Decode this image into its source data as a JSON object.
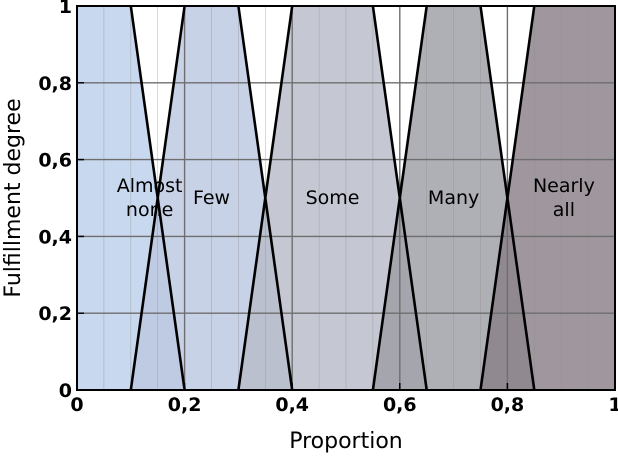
{
  "chart_data": {
    "type": "area",
    "title": "",
    "xlabel": "Proportion",
    "ylabel": "Fulfillment degree",
    "xlim": [
      0,
      1
    ],
    "ylim": [
      0,
      1
    ],
    "grid": true,
    "x_ticks": [
      0,
      0.2,
      0.4,
      0.6,
      0.8,
      1
    ],
    "x_tick_labels": [
      "0",
      "0,2",
      "0,4",
      "0,6",
      "0,8",
      "1"
    ],
    "y_ticks": [
      0,
      0.2,
      0.4,
      0.6,
      0.8,
      1
    ],
    "y_tick_labels": [
      "0",
      "0,2",
      "0,4",
      "0,6",
      "0,8",
      "1"
    ],
    "series": [
      {
        "name": "Almost none",
        "label_lines": [
          "Almost",
          "none"
        ],
        "label_x": 0.135,
        "points": [
          [
            0,
            1
          ],
          [
            0.1,
            1
          ],
          [
            0.2,
            0
          ],
          [
            0,
            0
          ]
        ],
        "color": "#c8d8ee"
      },
      {
        "name": "Few",
        "label_lines": [
          "Few"
        ],
        "label_x": 0.25,
        "points": [
          [
            0.1,
            0
          ],
          [
            0.2,
            1
          ],
          [
            0.3,
            1
          ],
          [
            0.4,
            0
          ]
        ],
        "color": "#bcc8e0"
      },
      {
        "name": "Some",
        "label_lines": [
          "Some"
        ],
        "label_x": 0.475,
        "points": [
          [
            0.3,
            0
          ],
          [
            0.4,
            1
          ],
          [
            0.55,
            1
          ],
          [
            0.65,
            0
          ]
        ],
        "color": "#b8bcc8"
      },
      {
        "name": "Many",
        "label_lines": [
          "Many"
        ],
        "label_x": 0.7,
        "points": [
          [
            0.55,
            0
          ],
          [
            0.65,
            1
          ],
          [
            0.75,
            1
          ],
          [
            0.85,
            0
          ]
        ],
        "color": "#9e9ea6"
      },
      {
        "name": "Nearly all",
        "label_lines": [
          "Nearly",
          "all"
        ],
        "label_x": 0.905,
        "points": [
          [
            0.75,
            0
          ],
          [
            0.85,
            1
          ],
          [
            1,
            1
          ],
          [
            1,
            0
          ]
        ],
        "color": "#8a8088"
      }
    ],
    "label_y": 0.5
  }
}
